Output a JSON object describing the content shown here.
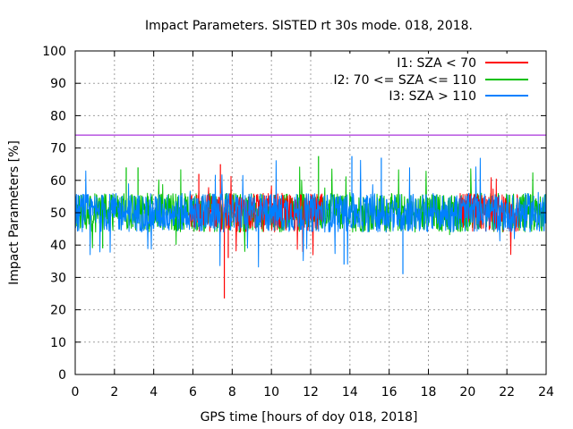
{
  "chart_data": {
    "type": "line",
    "title": "Impact Parameters. SISTED rt 30s mode. 018, 2018.",
    "xlabel": "GPS time [hours of doy 018, 2018]",
    "ylabel": "Impact Parameters [%]",
    "xlim": [
      0,
      24
    ],
    "ylim": [
      0,
      100
    ],
    "xticks": [
      0,
      2,
      4,
      6,
      8,
      10,
      12,
      14,
      16,
      18,
      20,
      22,
      24
    ],
    "yticks": [
      0,
      10,
      20,
      30,
      40,
      50,
      60,
      70,
      80,
      90,
      100
    ],
    "grid": true,
    "legend_position": "top-right",
    "reference_line": {
      "y": 74,
      "color": "#9400d3"
    },
    "series": [
      {
        "name": "I1: SZA < 70",
        "color": "#ff0000",
        "center": 50,
        "segments": [
          [
            5.8,
            12.6
          ],
          [
            19.6,
            22.6
          ]
        ],
        "approx_range": [
          37,
          66
        ],
        "outliers": [
          [
            7.6,
            23.5
          ],
          [
            7.8,
            36
          ],
          [
            7.4,
            65
          ],
          [
            6.3,
            62
          ]
        ]
      },
      {
        "name": "I2: 70 <= SZA <= 110",
        "color": "#00c000",
        "center": 50,
        "segments": [
          [
            0,
            24
          ]
        ],
        "approx_range": [
          38,
          67
        ],
        "outliers": [
          [
            12.4,
            67.5
          ],
          [
            2.6,
            64
          ],
          [
            3.2,
            64
          ],
          [
            1.4,
            39
          ]
        ]
      },
      {
        "name": "I3: SZA > 110",
        "color": "#0080ff",
        "center": 50,
        "segments": [
          [
            0,
            24
          ]
        ],
        "approx_range": [
          31,
          68
        ],
        "outliers": [
          [
            14.1,
            67.5
          ],
          [
            15.6,
            67
          ],
          [
            16.7,
            31
          ],
          [
            13.7,
            34
          ]
        ]
      }
    ]
  }
}
